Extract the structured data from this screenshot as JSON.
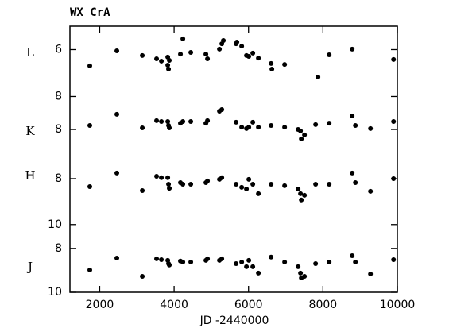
{
  "chart_data": {
    "type": "scatter",
    "title": "WX CrA",
    "x_label": "JD -2440000",
    "xlim": [
      1200,
      10000
    ],
    "xticks": [
      2000,
      4000,
      6000,
      8000,
      10000
    ],
    "ylim": [
      5,
      16.36
    ],
    "y_inverted": true,
    "yticks": [
      6,
      8,
      {
        "value": 9.41,
        "label": "8"
      },
      {
        "value": 11.51,
        "label": "8"
      },
      {
        "value": 13.47,
        "label": "10"
      },
      {
        "value": 14.49,
        "label": "8"
      },
      {
        "value": 16.36,
        "label": "10"
      }
    ],
    "series": [
      {
        "name": "L",
        "color": "#000000",
        "x": [
          1734,
          2461,
          3145,
          3529,
          3658,
          3829,
          3829,
          3850,
          3871,
          4170,
          4235,
          4448,
          4854,
          4897,
          5218,
          5282,
          5324,
          5666,
          5688,
          5816,
          5944,
          6008,
          6115,
          6265,
          6607,
          6628,
          6970,
          7867,
          8167,
          8786,
          9898
        ],
        "values": [
          6.69,
          6.05,
          6.25,
          6.39,
          6.49,
          6.32,
          6.66,
          6.83,
          6.46,
          6.19,
          5.54,
          6.12,
          6.19,
          6.39,
          5.98,
          5.75,
          5.61,
          5.75,
          5.68,
          5.85,
          6.25,
          6.29,
          6.15,
          6.36,
          6.59,
          6.83,
          6.63,
          7.17,
          6.22,
          5.98,
          6.42
        ]
      },
      {
        "name": "K",
        "color": "#000000",
        "x": [
          1734,
          2461,
          3145,
          3529,
          3658,
          3829,
          3850,
          3871,
          4170,
          4235,
          4448,
          4854,
          4897,
          5218,
          5282,
          5666,
          5816,
          5944,
          6008,
          6115,
          6265,
          6607,
          6970,
          7333,
          7397,
          7419,
          7504,
          7803,
          8167,
          8786,
          8872,
          9278,
          9898
        ],
        "values": [
          9.24,
          8.76,
          9.34,
          9.03,
          9.07,
          9.07,
          9.24,
          9.34,
          9.14,
          9.07,
          9.07,
          9.14,
          9.03,
          8.63,
          8.56,
          9.1,
          9.31,
          9.37,
          9.31,
          9.1,
          9.31,
          9.24,
          9.31,
          9.41,
          9.47,
          9.81,
          9.64,
          9.2,
          9.14,
          8.83,
          9.24,
          9.37,
          9.07
        ]
      },
      {
        "name": "H",
        "color": "#000000",
        "x": [
          1734,
          2461,
          3145,
          3529,
          3658,
          3829,
          3850,
          3871,
          4170,
          4235,
          4448,
          4854,
          4897,
          5218,
          5282,
          5666,
          5816,
          5944,
          6008,
          6115,
          6265,
          6607,
          6970,
          7333,
          7397,
          7419,
          7504,
          7803,
          8167,
          8786,
          8872,
          9278,
          9898
        ],
        "values": [
          11.85,
          11.27,
          12.02,
          11.41,
          11.47,
          11.47,
          11.75,
          11.92,
          11.68,
          11.75,
          11.75,
          11.68,
          11.61,
          11.54,
          11.47,
          11.75,
          11.88,
          11.95,
          11.54,
          11.75,
          12.15,
          11.75,
          11.81,
          11.95,
          12.15,
          12.42,
          12.22,
          11.75,
          11.75,
          11.27,
          11.68,
          12.05,
          11.51
        ]
      },
      {
        "name": "J",
        "color": "#000000",
        "x": [
          1734,
          2461,
          3145,
          3529,
          3658,
          3829,
          3850,
          3871,
          4170,
          4235,
          4448,
          4854,
          4897,
          5218,
          5282,
          5666,
          5816,
          5944,
          6008,
          6115,
          6265,
          6607,
          6970,
          7333,
          7397,
          7419,
          7504,
          7803,
          8167,
          8786,
          8872,
          9278,
          9898
        ],
        "values": [
          15.41,
          14.9,
          15.68,
          14.93,
          14.97,
          15.0,
          15.14,
          15.2,
          15.03,
          15.07,
          15.07,
          15.0,
          14.93,
          15.0,
          14.93,
          15.14,
          15.07,
          15.27,
          15.0,
          15.27,
          15.54,
          14.86,
          15.07,
          15.27,
          15.54,
          15.75,
          15.68,
          15.14,
          15.07,
          14.8,
          15.07,
          15.58,
          14.97
        ]
      }
    ]
  }
}
